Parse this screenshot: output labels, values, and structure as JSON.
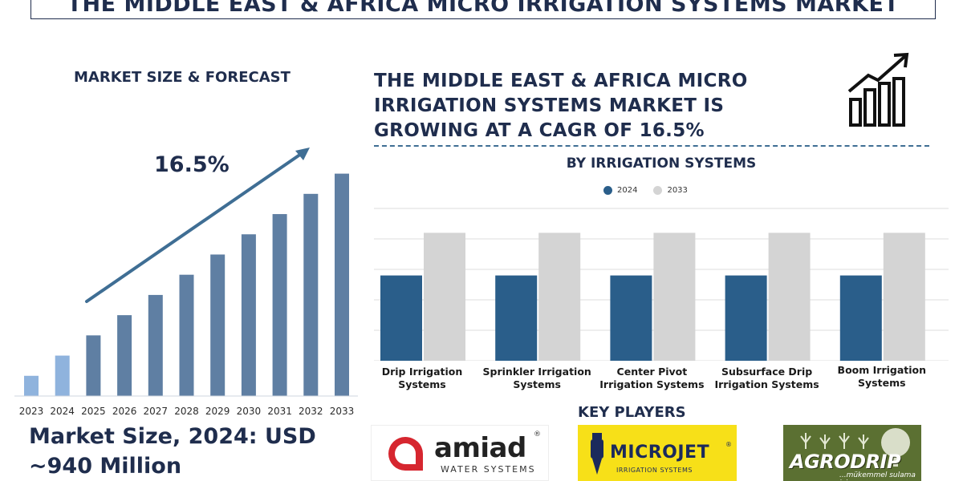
{
  "banner_title": "THE MIDDLE EAST & AFRICA MICRO IRRIGATION SYSTEMS MARKET",
  "left": {
    "title": "MARKET SIZE & FORECAST",
    "cagr": "16.5%",
    "market_size_line1": "Market Size, 2024: USD",
    "market_size_line2": "~940 Million"
  },
  "headline": "THE MIDDLE EAST & AFRICA MICRO IRRIGATION SYSTEMS MARKET IS GROWING AT A CAGR OF 16.5%",
  "key_players": {
    "title": "KEY PLAYERS",
    "amiad": {
      "name": "amiad",
      "reg": "®",
      "sub": "WATER SYSTEMS"
    },
    "microjet": {
      "name": "MICROJET",
      "reg": "®",
      "sub": "IRRIGATION SYSTEMS"
    },
    "agrodrip": {
      "name": "AGRODRIP",
      "sub": "...mükemmel sulama için"
    }
  },
  "icons": {
    "growth": "bar-growth-arrow-icon",
    "trend": "trend-arrow-icon"
  },
  "colors": {
    "navy": "#1f2d4d",
    "series_2024": "#2a5e8a",
    "series_2033": "#d4d4d4",
    "forecast_bar": "#5f7fa3",
    "forecast_bar_light": "#8fb3dd",
    "arrow": "#3f6e94"
  },
  "chart_data": [
    {
      "type": "bar",
      "title": "MARKET SIZE & FORECAST",
      "categories": [
        "2023",
        "2024",
        "2025",
        "2026",
        "2027",
        "2028",
        "2029",
        "2030",
        "2031",
        "2032",
        "2033"
      ],
      "values": [
        1.0,
        2.0,
        3.0,
        4.0,
        5.0,
        6.0,
        7.0,
        8.0,
        9.0,
        10.0,
        11.0
      ],
      "ylim": [
        0,
        11.5
      ],
      "annotation": "16.5%",
      "grid": false
    },
    {
      "type": "bar",
      "title": "BY IRRIGATION SYSTEMS",
      "categories": [
        "Drip Irrigation Systems",
        "Sprinkler Irrigation Systems",
        "Center Pivot Irrigation Systems",
        "Subsurface Drip Irrigation Systems",
        "Boom Irrigation Systems"
      ],
      "series": [
        {
          "name": "2024",
          "values": [
            2.8,
            2.8,
            2.8,
            2.8,
            2.8
          ]
        },
        {
          "name": "2033",
          "values": [
            4.2,
            4.2,
            4.2,
            4.2,
            4.2
          ]
        }
      ],
      "ylim": [
        0,
        5
      ],
      "grid": true,
      "legend": "top-center"
    }
  ]
}
